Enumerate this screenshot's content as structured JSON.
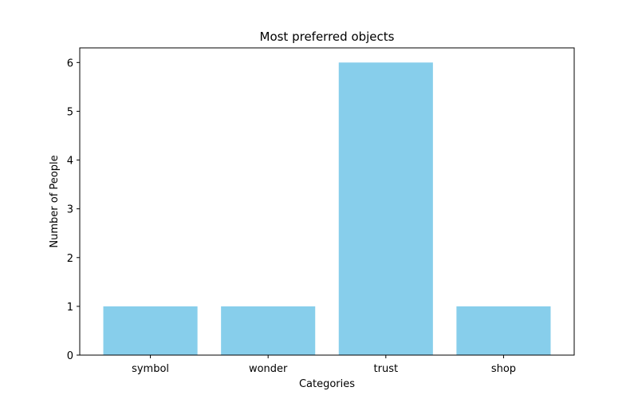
{
  "chart_data": {
    "type": "bar",
    "title": "Most preferred objects",
    "xlabel": "Categories",
    "ylabel": "Number of People",
    "categories": [
      "symbol",
      "wonder",
      "trust",
      "shop"
    ],
    "values": [
      1,
      1,
      6,
      1
    ],
    "ylim": [
      0,
      6.3
    ],
    "yticks": [
      0,
      1,
      2,
      3,
      4,
      5,
      6
    ],
    "bar_color": "#87CEEB",
    "grid": false,
    "legend": "none"
  }
}
